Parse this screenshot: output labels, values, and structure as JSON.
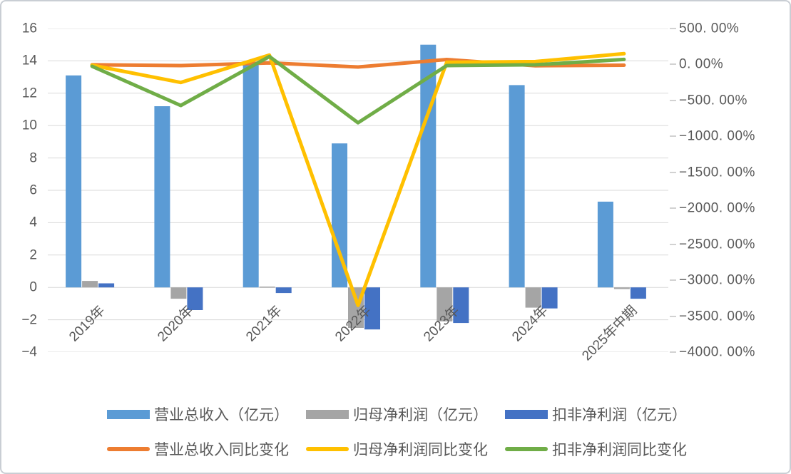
{
  "chart_data": {
    "type": "combo-bar-line",
    "title": "",
    "categories": [
      "2019年",
      "2020年",
      "2021年",
      "2022年",
      "2023年",
      "2024年",
      "2025年中期"
    ],
    "bar_series": [
      {
        "name": "营业总收入（亿元）",
        "color": "#5B9BD5",
        "axis": "left",
        "values": [
          13.1,
          11.2,
          13.8,
          8.9,
          15.0,
          12.5,
          5.3
        ]
      },
      {
        "name": "归母净利润（亿元）",
        "color": "#A5A5A5",
        "axis": "left",
        "values": [
          0.4,
          -0.7,
          0.05,
          -2.5,
          -2.1,
          -1.25,
          -0.1
        ]
      },
      {
        "name": "扣非净利润（亿元）",
        "color": "#4472C4",
        "axis": "left",
        "values": [
          0.25,
          -1.4,
          -0.35,
          -2.6,
          -2.2,
          -1.3,
          -0.7
        ]
      }
    ],
    "line_series": [
      {
        "name": "营业总收入同比变化",
        "color": "#ED7D31",
        "axis": "right",
        "values_pct": [
          -5,
          -15,
          22,
          -35,
          69,
          -17,
          -10
        ]
      },
      {
        "name": "归母净利润同比变化",
        "color": "#FFC000",
        "axis": "right",
        "values_pct": [
          -10,
          -250,
          130,
          -3350,
          30,
          40,
          150
        ]
      },
      {
        "name": "扣非净利润同比变化",
        "color": "#70AD47",
        "axis": "right",
        "values_pct": [
          -25,
          -570,
          110,
          -810,
          -15,
          -5,
          70
        ]
      }
    ],
    "left_axis": {
      "min": -4,
      "max": 16,
      "step": 2,
      "tick_labels": [
        "16",
        "14",
        "12",
        "10",
        "8",
        "6",
        "4",
        "2",
        "0",
        "−2",
        "−4"
      ]
    },
    "right_axis": {
      "min": -4000,
      "max": 500,
      "step": 500,
      "tick_labels": [
        "500. 00%",
        "0. 00%",
        "−500. 00%",
        "−1000. 00%",
        "−1500. 00%",
        "−2000. 00%",
        "−2500. 00%",
        "−3000. 00%",
        "−3500. 00%",
        "−4000. 00%"
      ]
    },
    "grid": "on",
    "legend_position": "bottom",
    "gridline_color": "#D9D9D9",
    "text_color": "#595959"
  }
}
